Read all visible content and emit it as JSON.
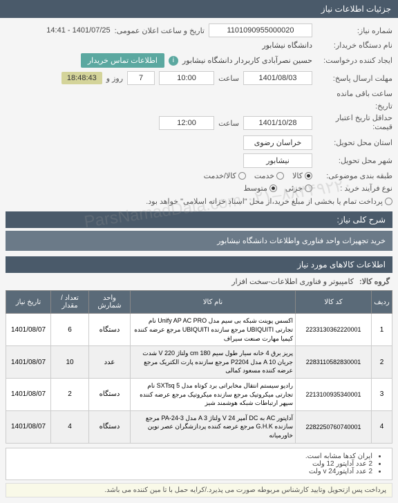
{
  "header": {
    "title": "جزئیات اطلاعات نیاز"
  },
  "fields": {
    "need_number_label": "شماره نیاز:",
    "need_number": "1101090955000020",
    "announce_label": "تاریخ و ساعت اعلان عمومی:",
    "announce_value": "1401/07/25 - 14:41",
    "buyer_org_label": "نام دستگاه خریدار:",
    "buyer_org": "دانشگاه نیشابور",
    "requester_label": "ایجاد کننده درخواست:",
    "requester": "حسین نصرآبادی کاربردار دانشگاه نیشابور",
    "contact_btn": "اطلاعات تماس خریدار",
    "response_deadline_label": "مهلت ارسال پاسخ:",
    "response_date": "1401/08/03",
    "time_label": "ساعت",
    "response_time": "10:00",
    "days": "7",
    "days_label": "روز و",
    "remaining_time": "18:48:43",
    "remaining_label": "ساعت باقی مانده",
    "history_label": "تاریخ:",
    "validity_label": "حداقل تاریخ اعتبار",
    "price_label": "قیمت:",
    "validity_date": "1401/10/28",
    "validity_time": "12:00",
    "province_label": "استان محل تحویل:",
    "province": "خراسان رضوی",
    "city_label": "شهر محل تحویل:",
    "city": "نیشابور",
    "category_label": "طبقه بندی موضوعی:",
    "cat_goods": "کالا",
    "cat_service": "خدمت",
    "cat_goods_service": "کالا/خدمت",
    "purchase_type_label": "نوع فرآیند خرید :",
    "pt_small": "جزئی",
    "pt_medium": "متوسط",
    "pt_note": "پرداخت تمام یا بخشی از مبلغ خرید،از محل \"اسناد خزانه اسلامی\" خواهد بود.",
    "need_desc_label": "شرح کلی نیاز:",
    "need_desc": "خرید تجهیزات واحد فناوری واطلاعات دانشگاه نیشابور"
  },
  "goods_section": {
    "title": "اطلاعات کالاهای مورد نیاز",
    "group_label": "گروه کالا:",
    "group_value": "کامپیوتر و فناوری اطلاعات-سخت افزار"
  },
  "table": {
    "headers": [
      "ردیف",
      "کد کالا",
      "نام کالا",
      "واحد شمارش",
      "تعداد / مقدار",
      "تاریخ نیاز"
    ],
    "rows": [
      {
        "idx": "1",
        "code": "2233130362220001",
        "name": "اکسس پوینت شبکه بی سیم مدل Unify AP AC PRO نام تجارتی UBIQUITI مرجع سازنده UBIQUITI مرجع عرضه کننده کیمیا مهارت صنعت سیراف",
        "unit": "دستگاه",
        "qty": "6",
        "date": "1401/08/07"
      },
      {
        "idx": "2",
        "code": "2283110582830001",
        "name": "پریز برق 4 خانه سیار طول سیم cm 180 ولتاژ V 220 شدت جریان A 10 مدل P2204 مرجع سازنده پارت الکتریک مرجع عرضه کننده مسعود کمالی",
        "unit": "عدد",
        "qty": "10",
        "date": "1401/08/07"
      },
      {
        "idx": "3",
        "code": "2213100935340001",
        "name": "رادیو سیستم انتقال مخابراتی برد کوتاه مدل SXTsq 5 نام تجارتی میکروتیک مرجع سازنده میکروتیک مرجع عرضه کننده سپهر ارتباطات شبکه هوشمند شیز",
        "unit": "دستگاه",
        "qty": "2",
        "date": "1401/08/07"
      },
      {
        "idx": "4",
        "code": "2282250760740001",
        "name": "آداپتور AC به DC آمپر V 24 ولتاژ A 3 مدل PA-24-3 مرجع سازنده G.H.K مرجع عرضه کننده پردازشگران عصر نوین خاورمیانه",
        "unit": "دستگاه",
        "qty": "4",
        "date": "1401/08/07"
      }
    ]
  },
  "notes": {
    "line1": "ایران کدها مشابه است.",
    "line2": "2 عدد آداپتور 12 ولت",
    "line3": "2 عدد آداپتورv 24 ولت"
  },
  "footer": "پرداخت پس ازتحویل وتایید کارشناس مربوطه صورت می پذیرد./کرایه حمل با تا مین کننده می باشد.",
  "watermark": "ParsNamadData.com ۰۲۱–۸۸۳۴۹۲۲۰"
}
